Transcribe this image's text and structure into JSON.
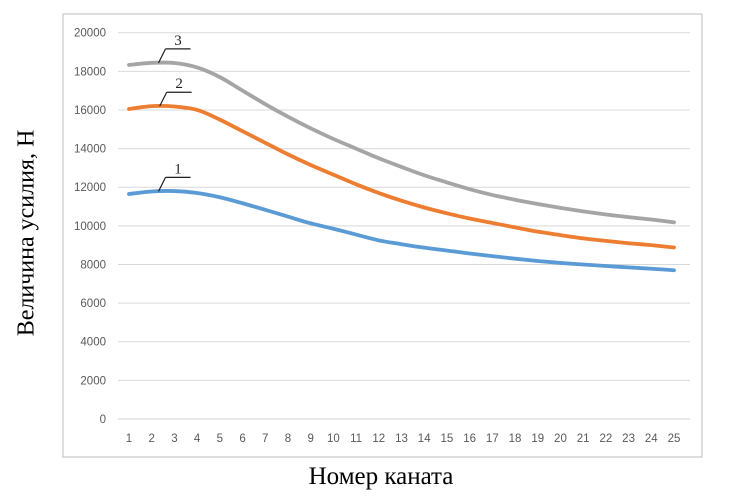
{
  "chart_data": {
    "type": "line",
    "title": "",
    "xlabel": "Номер каната",
    "ylabel": "Величина усилия, Н",
    "x": [
      1,
      2,
      3,
      4,
      5,
      6,
      7,
      8,
      9,
      10,
      11,
      12,
      13,
      14,
      15,
      16,
      17,
      18,
      19,
      20,
      21,
      22,
      23,
      24,
      25
    ],
    "ylim": [
      0,
      20000
    ],
    "yticks": [
      0,
      2000,
      4000,
      6000,
      8000,
      10000,
      12000,
      14000,
      16000,
      18000,
      20000
    ],
    "grid": true,
    "legend_position": "none",
    "series": [
      {
        "name": "1",
        "color": "#5B9BD5",
        "values": [
          11650,
          11780,
          11800,
          11700,
          11480,
          11170,
          10830,
          10480,
          10130,
          9850,
          9550,
          9250,
          9050,
          8870,
          8720,
          8570,
          8430,
          8300,
          8180,
          8080,
          8000,
          7920,
          7850,
          7780,
          7700
        ]
      },
      {
        "name": "2",
        "color": "#ED7D31",
        "values": [
          16050,
          16200,
          16180,
          16000,
          15500,
          14900,
          14300,
          13700,
          13150,
          12650,
          12150,
          11700,
          11300,
          10950,
          10650,
          10380,
          10150,
          9920,
          9700,
          9520,
          9350,
          9220,
          9100,
          9000,
          8880
        ]
      },
      {
        "name": "3",
        "color": "#A5A5A5",
        "values": [
          18330,
          18440,
          18430,
          18200,
          17700,
          17000,
          16300,
          15650,
          15050,
          14500,
          14000,
          13500,
          13050,
          12620,
          12250,
          11900,
          11600,
          11350,
          11130,
          10930,
          10750,
          10590,
          10450,
          10330,
          10180
        ]
      }
    ],
    "annotations": [
      {
        "label": "1",
        "series": "1",
        "anchor_x": 2.3
      },
      {
        "label": "2",
        "series": "2",
        "anchor_x": 2.35
      },
      {
        "label": "3",
        "series": "3",
        "anchor_x": 2.3
      }
    ],
    "colors": {
      "gridline": "#D9D9D9",
      "axis_line": "#D0D0D0",
      "frame": "#C9C9C9",
      "tick_label": "#595959",
      "annotation": "#1F1F1F"
    }
  }
}
